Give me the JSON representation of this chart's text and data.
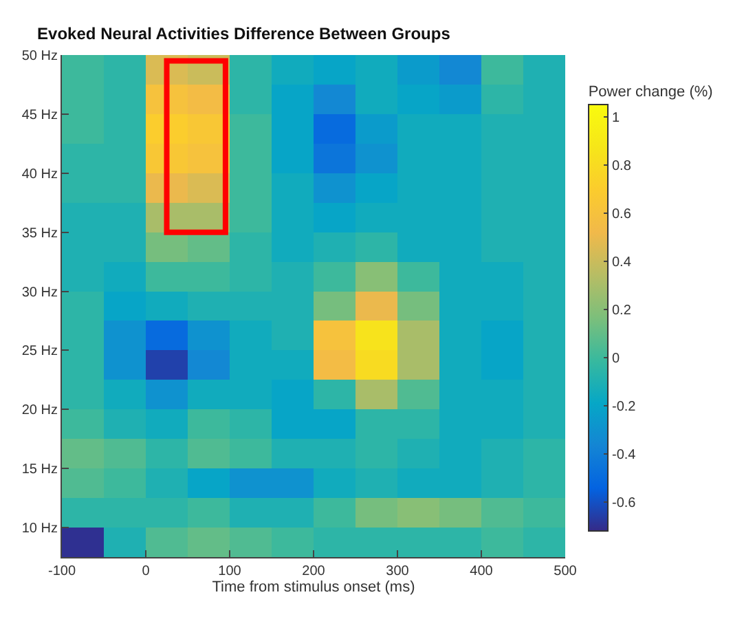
{
  "chart_data": {
    "type": "heatmap",
    "title": "Evoked Neural Activities Difference Between Groups",
    "xlabel": "Time from stimulus onset (ms)",
    "clabel": "Power change (%)",
    "x": [
      -75,
      -25,
      25,
      75,
      125,
      175,
      225,
      275,
      325,
      375,
      425,
      475
    ],
    "y": [
      48.75,
      46.25,
      43.75,
      41.25,
      38.75,
      36.25,
      33.75,
      31.25,
      28.75,
      26.25,
      23.75,
      21.25,
      18.75,
      16.25,
      13.75,
      11.25,
      8.75
    ],
    "cells": [
      [
        0,
        -0.05,
        0.45,
        0.4,
        -0.05,
        -0.15,
        -0.2,
        -0.15,
        -0.25,
        -0.35,
        0,
        -0.1
      ],
      [
        0,
        -0.05,
        0.6,
        0.55,
        -0.05,
        -0.2,
        -0.35,
        -0.15,
        -0.2,
        -0.25,
        -0.05,
        -0.1
      ],
      [
        0,
        -0.05,
        0.7,
        0.65,
        0,
        -0.2,
        -0.5,
        -0.25,
        -0.15,
        -0.15,
        -0.1,
        -0.1
      ],
      [
        -0.05,
        -0.05,
        0.65,
        0.6,
        0,
        -0.2,
        -0.45,
        -0.3,
        -0.15,
        -0.15,
        -0.1,
        -0.1
      ],
      [
        -0.05,
        -0.05,
        0.5,
        0.45,
        0,
        -0.15,
        -0.3,
        -0.2,
        -0.15,
        -0.15,
        -0.1,
        -0.1
      ],
      [
        -0.1,
        -0.1,
        0.3,
        0.3,
        0,
        -0.15,
        -0.2,
        -0.15,
        -0.15,
        -0.15,
        -0.1,
        -0.1
      ],
      [
        -0.1,
        -0.1,
        0.15,
        0.1,
        -0.05,
        -0.15,
        -0.1,
        -0.05,
        -0.15,
        -0.15,
        -0.1,
        -0.1
      ],
      [
        -0.1,
        -0.15,
        0,
        0,
        -0.05,
        -0.1,
        0,
        0.2,
        0,
        -0.15,
        -0.15,
        -0.1
      ],
      [
        -0.05,
        -0.2,
        -0.15,
        -0.1,
        -0.1,
        -0.1,
        0.15,
        0.5,
        0.15,
        -0.15,
        -0.15,
        -0.1
      ],
      [
        -0.05,
        -0.3,
        -0.5,
        -0.3,
        -0.15,
        -0.1,
        0.6,
        0.85,
        0.3,
        -0.15,
        -0.2,
        -0.1
      ],
      [
        -0.05,
        -0.3,
        -0.65,
        -0.35,
        -0.15,
        -0.15,
        0.55,
        0.8,
        0.3,
        -0.15,
        -0.2,
        -0.1
      ],
      [
        -0.05,
        -0.15,
        -0.3,
        -0.15,
        -0.15,
        -0.2,
        -0.05,
        0.3,
        0.05,
        -0.15,
        -0.15,
        -0.1
      ],
      [
        0,
        -0.1,
        -0.15,
        0,
        -0.05,
        -0.2,
        -0.2,
        -0.05,
        -0.05,
        -0.15,
        -0.15,
        -0.1
      ],
      [
        0.1,
        0.05,
        -0.05,
        0.05,
        0,
        -0.1,
        -0.1,
        -0.05,
        -0.1,
        -0.15,
        -0.1,
        -0.05
      ],
      [
        0.05,
        0,
        -0.1,
        -0.2,
        -0.3,
        -0.3,
        -0.15,
        -0.1,
        -0.15,
        -0.15,
        -0.1,
        -0.05
      ],
      [
        -0.05,
        -0.05,
        -0.05,
        0,
        -0.1,
        -0.1,
        0,
        0.15,
        0.2,
        0.15,
        0.05,
        0
      ],
      [
        -0.7,
        -0.1,
        0.05,
        0.1,
        0.05,
        0,
        -0.05,
        -0.05,
        -0.05,
        -0.05,
        0,
        -0.05
      ]
    ],
    "clim": [
      -0.72,
      1.05
    ],
    "cticks": [
      -0.6,
      -0.4,
      -0.2,
      0,
      0.2,
      0.4,
      0.6,
      0.8,
      1
    ],
    "xlim": [
      -100,
      500
    ],
    "xticks": [
      -100,
      0,
      100,
      200,
      300,
      400,
      500
    ],
    "ylim": [
      7.5,
      50
    ],
    "yticks": [
      {
        "value": 10,
        "label": "10 Hz"
      },
      {
        "value": 15,
        "label": "15 Hz"
      },
      {
        "value": 20,
        "label": "20 Hz"
      },
      {
        "value": 25,
        "label": "25 Hz"
      },
      {
        "value": 30,
        "label": "30 Hz"
      },
      {
        "value": 35,
        "label": "35 Hz"
      },
      {
        "value": 40,
        "label": "40 Hz"
      },
      {
        "value": 45,
        "label": "45 Hz"
      },
      {
        "value": 50,
        "label": "50 Hz"
      }
    ]
  }
}
